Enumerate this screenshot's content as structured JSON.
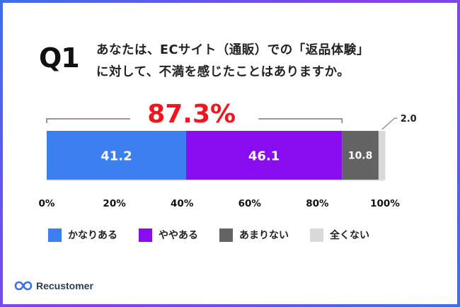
{
  "question": {
    "label": "Q1",
    "line1": "あなたは、ECサイト（通販）での「返品体験」",
    "line2": "に対して、不満を感じたことはありますか。"
  },
  "highlight": "87.3%",
  "brand": {
    "name": "Recustomer",
    "logo_icon": "infinity-icon"
  },
  "colors": {
    "accent_red": "#f5141e",
    "kanari": "#3b7ff0",
    "yaya": "#8a0cf0",
    "amari": "#636363",
    "mattaku": "#d9d9d9"
  },
  "chart_data": {
    "type": "bar",
    "orientation": "horizontal",
    "stacked": true,
    "xlim": [
      0,
      100
    ],
    "ticks": [
      "0%",
      "20%",
      "40%",
      "60%",
      "80%",
      "100%"
    ],
    "tick_values": [
      0,
      20,
      40,
      60,
      80,
      100
    ],
    "series": [
      {
        "name": "かなりある",
        "value": 41.2,
        "label": "41.2",
        "color": "#3b7ff0"
      },
      {
        "name": "ややある",
        "value": 46.1,
        "label": "46.1",
        "color": "#8a0cf0"
      },
      {
        "name": "あまりない",
        "value": 10.8,
        "label": "10.8",
        "color": "#636363"
      },
      {
        "name": "全くない",
        "value": 2.0,
        "label": "2.0",
        "color": "#d9d9d9"
      }
    ],
    "bracket_total": "87.3%",
    "legend_position": "bottom"
  }
}
